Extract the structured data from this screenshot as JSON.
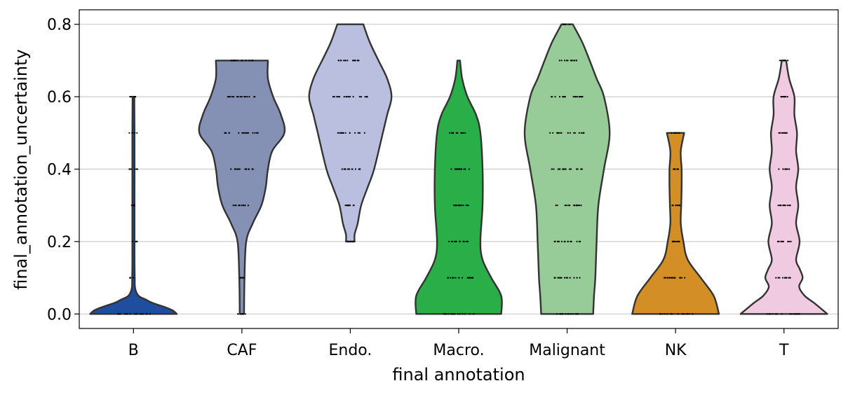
{
  "chart_data": {
    "type": "violin",
    "xlabel": "final annotation",
    "ylabel": "final_annotation_uncertainty",
    "ylim": [
      -0.04,
      0.84
    ],
    "yticks": [
      0.0,
      0.2,
      0.4,
      0.6,
      0.8
    ],
    "ytick_labels": [
      "0.0",
      "0.2",
      "0.4",
      "0.6",
      "0.8"
    ],
    "grid": "horizontal",
    "categories": [
      "B",
      "CAF",
      "Endo.",
      "Macro.",
      "Malignant",
      "NK",
      "T"
    ],
    "colors": [
      "#1f4e9e",
      "#8490b4",
      "#bbbfdf",
      "#2aae48",
      "#97cb98",
      "#d38f26",
      "#efcae0"
    ],
    "violins": [
      {
        "category": "B",
        "range": [
          0.0,
          0.6
        ],
        "profile": [
          [
            0.0,
            1.0
          ],
          [
            0.01,
            0.9
          ],
          [
            0.02,
            0.7
          ],
          [
            0.03,
            0.45
          ],
          [
            0.04,
            0.28
          ],
          [
            0.05,
            0.12
          ],
          [
            0.07,
            0.04
          ],
          [
            0.1,
            0.03
          ],
          [
            0.15,
            0.025
          ],
          [
            0.3,
            0.025
          ],
          [
            0.5,
            0.025
          ],
          [
            0.6,
            0.02
          ]
        ],
        "points": [
          0.0,
          0.1,
          0.2,
          0.3,
          0.4,
          0.5,
          0.6
        ]
      },
      {
        "category": "CAF",
        "range": [
          0.0,
          0.7
        ],
        "profile": [
          [
            0.0,
            0.05
          ],
          [
            0.1,
            0.06
          ],
          [
            0.2,
            0.1
          ],
          [
            0.25,
            0.25
          ],
          [
            0.3,
            0.45
          ],
          [
            0.35,
            0.55
          ],
          [
            0.4,
            0.6
          ],
          [
            0.45,
            0.7
          ],
          [
            0.5,
            0.98
          ],
          [
            0.55,
            0.9
          ],
          [
            0.6,
            0.72
          ],
          [
            0.65,
            0.6
          ],
          [
            0.7,
            0.6
          ]
        ],
        "points": [
          0.0,
          0.1,
          0.3,
          0.4,
          0.5,
          0.6,
          0.7
        ]
      },
      {
        "category": "Endo.",
        "range": [
          0.2,
          0.8
        ],
        "profile": [
          [
            0.2,
            0.1
          ],
          [
            0.22,
            0.1
          ],
          [
            0.25,
            0.17
          ],
          [
            0.3,
            0.25
          ],
          [
            0.35,
            0.4
          ],
          [
            0.4,
            0.55
          ],
          [
            0.5,
            0.75
          ],
          [
            0.55,
            0.85
          ],
          [
            0.6,
            0.95
          ],
          [
            0.65,
            0.85
          ],
          [
            0.7,
            0.65
          ],
          [
            0.75,
            0.45
          ],
          [
            0.8,
            0.3
          ]
        ],
        "points": [
          0.2,
          0.3,
          0.4,
          0.5,
          0.6,
          0.7
        ]
      },
      {
        "category": "Macro.",
        "range": [
          0.0,
          0.7
        ],
        "profile": [
          [
            0.0,
            0.98
          ],
          [
            0.05,
            0.98
          ],
          [
            0.1,
            0.75
          ],
          [
            0.15,
            0.55
          ],
          [
            0.2,
            0.5
          ],
          [
            0.3,
            0.55
          ],
          [
            0.4,
            0.55
          ],
          [
            0.5,
            0.5
          ],
          [
            0.55,
            0.4
          ],
          [
            0.6,
            0.2
          ],
          [
            0.65,
            0.08
          ],
          [
            0.7,
            0.03
          ]
        ],
        "points": [
          0.0,
          0.1,
          0.2,
          0.3,
          0.4,
          0.5
        ]
      },
      {
        "category": "Malignant",
        "range": [
          0.0,
          0.8
        ],
        "profile": [
          [
            0.0,
            0.6
          ],
          [
            0.05,
            0.62
          ],
          [
            0.1,
            0.65
          ],
          [
            0.2,
            0.68
          ],
          [
            0.3,
            0.72
          ],
          [
            0.4,
            0.85
          ],
          [
            0.5,
            0.98
          ],
          [
            0.6,
            0.85
          ],
          [
            0.65,
            0.68
          ],
          [
            0.7,
            0.52
          ],
          [
            0.75,
            0.35
          ],
          [
            0.8,
            0.13
          ]
        ],
        "points": [
          0.0,
          0.1,
          0.2,
          0.3,
          0.4,
          0.5,
          0.6,
          0.7,
          0.8
        ]
      },
      {
        "category": "NK",
        "range": [
          0.0,
          0.5
        ],
        "profile": [
          [
            0.0,
            1.0
          ],
          [
            0.05,
            0.88
          ],
          [
            0.1,
            0.58
          ],
          [
            0.15,
            0.28
          ],
          [
            0.2,
            0.18
          ],
          [
            0.25,
            0.12
          ],
          [
            0.3,
            0.13
          ],
          [
            0.35,
            0.14
          ],
          [
            0.4,
            0.14
          ],
          [
            0.45,
            0.12
          ],
          [
            0.5,
            0.2
          ]
        ],
        "points": [
          0.0,
          0.1,
          0.2,
          0.3,
          0.4,
          0.5
        ]
      },
      {
        "category": "T",
        "range": [
          0.0,
          0.7
        ],
        "profile": [
          [
            0.0,
            1.0
          ],
          [
            0.03,
            0.7
          ],
          [
            0.05,
            0.48
          ],
          [
            0.075,
            0.35
          ],
          [
            0.1,
            0.43
          ],
          [
            0.125,
            0.36
          ],
          [
            0.15,
            0.28
          ],
          [
            0.2,
            0.36
          ],
          [
            0.25,
            0.28
          ],
          [
            0.3,
            0.33
          ],
          [
            0.35,
            0.28
          ],
          [
            0.4,
            0.33
          ],
          [
            0.45,
            0.28
          ],
          [
            0.5,
            0.3
          ],
          [
            0.55,
            0.24
          ],
          [
            0.6,
            0.24
          ],
          [
            0.65,
            0.12
          ],
          [
            0.7,
            0.05
          ]
        ],
        "points": [
          0.0,
          0.1,
          0.2,
          0.3,
          0.4,
          0.5,
          0.6,
          0.7
        ]
      }
    ]
  }
}
